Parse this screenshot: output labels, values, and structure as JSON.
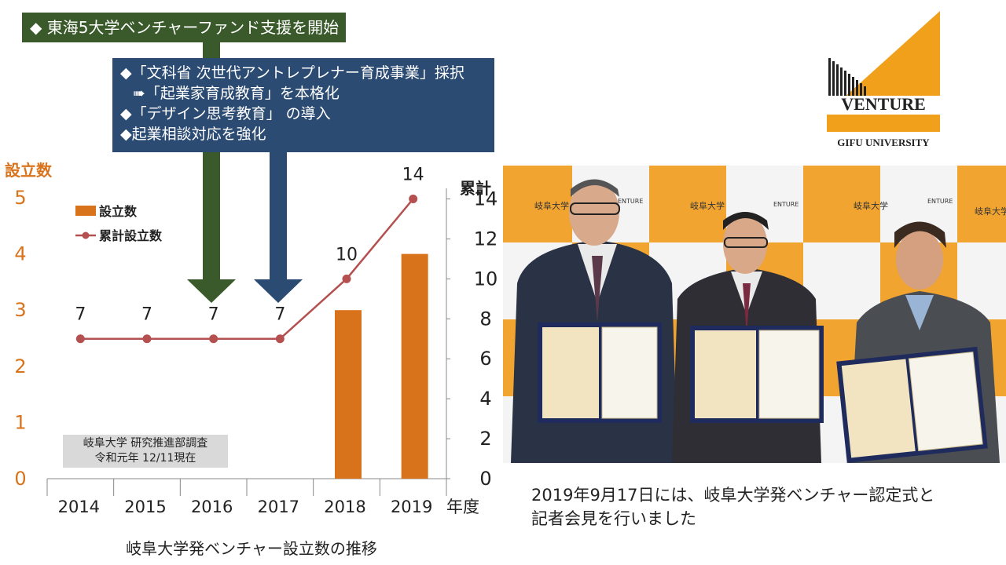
{
  "banner_green": {
    "text": "◆ 東海5大学ベンチャーファンド支援を開始"
  },
  "banner_blue": {
    "lines": [
      "◆「文科省 次世代アントレプレナー育成事業」採択",
      "➠「起業家育成教育」を本格化",
      "◆「デザイン思考教育」 の導入",
      "◆起業相談対応を強化"
    ]
  },
  "chart_data": {
    "type": "bar",
    "categories": [
      "2014",
      "2015",
      "2016",
      "2017",
      "2018",
      "2019"
    ],
    "series": [
      {
        "name": "設立数",
        "type": "bar",
        "axis": "left",
        "color": "#d9731b",
        "values": [
          0,
          0,
          0,
          0,
          3,
          4
        ]
      },
      {
        "name": "累計設立数",
        "type": "line",
        "axis": "right",
        "color": "#b55050",
        "values": [
          7,
          7,
          7,
          7,
          10,
          14
        ]
      }
    ],
    "data_labels": [
      "7",
      "7",
      "7",
      "7",
      "10",
      "14"
    ],
    "left_axis": {
      "label": "設立数",
      "range": [
        0,
        5
      ],
      "ticks": [
        "0",
        "1",
        "2",
        "3",
        "4",
        "5"
      ]
    },
    "right_axis": {
      "label": "累計",
      "range": [
        0,
        15
      ],
      "ticks": [
        "0",
        "2",
        "4",
        "6",
        "8",
        "10",
        "12",
        "14"
      ]
    },
    "x_axis_unit": "年度",
    "legend_position": "top-left",
    "caption": "岐阜大学発ベンチャー設立数の推移",
    "note_lines": [
      "岐阜大学 研究推進部調査",
      "令和元年 12/11現在"
    ]
  },
  "logo": {
    "text": "VENTURE",
    "subtext": "GIFU UNIVERSITY"
  },
  "photo": {
    "banner_text": "岐阜大学",
    "backdrop_small_text": "ENTURE"
  },
  "photo_caption": {
    "lines": [
      "2019年9月17日には、岐阜大学発ベンチャー認定式と",
      "記者会見を行いました"
    ]
  },
  "colors": {
    "green": "#3a5a2b",
    "blue": "#2c4b73",
    "orange": "#d9731b",
    "line": "#b55050",
    "note_bg": "#d9d9d9"
  }
}
